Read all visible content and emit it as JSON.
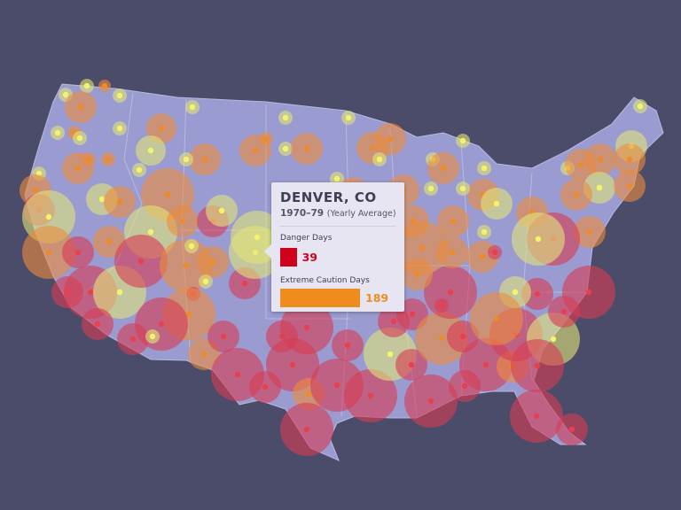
{
  "tooltip": {
    "city": "DENVER, CO",
    "period": "1970–79",
    "period_note": "(Yearly Average)",
    "danger_label": "Danger Days",
    "danger_value": 39,
    "extreme_label": "Extreme Caution Days",
    "extreme_value": 189
  },
  "colors": {
    "background": "#4b4b6a",
    "land": "#9a9bd0",
    "danger": "#d0021b",
    "extreme_caution": "#f08c1e",
    "caution": "#e8e878"
  }
}
